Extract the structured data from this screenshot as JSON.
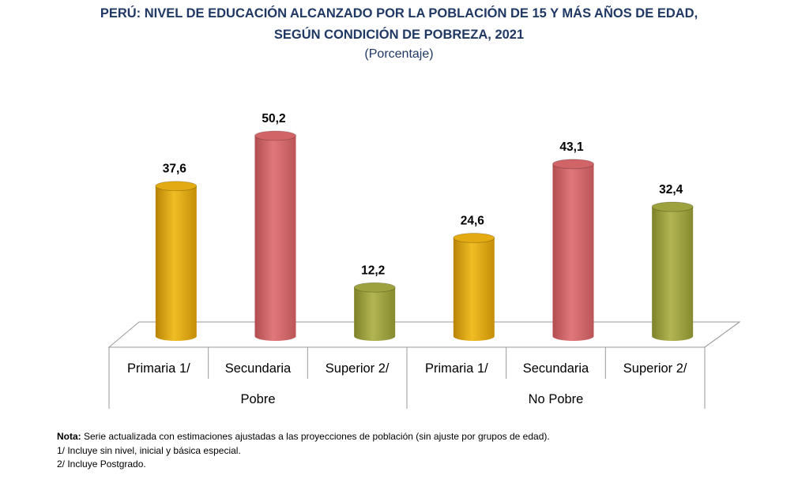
{
  "title_line1": "PERÚ: NIVEL DE EDUCACIÓN ALCANZADO POR LA POBLACIÓN DE 15 Y MÁS AÑOS DE EDAD,",
  "title_line2": "SEGÚN CONDICIÓN DE POBREZA, 2021",
  "subtitle": "(Porcentaje)",
  "chart_data": {
    "type": "bar",
    "groups": [
      "Pobre",
      "No Pobre"
    ],
    "categories": [
      "Primaria 1/",
      "Secundaria",
      "Superior 2/"
    ],
    "series": [
      {
        "group": "Pobre",
        "values": [
          37.6,
          50.2,
          12.2
        ],
        "labels": [
          "37,6",
          "50,2",
          "12,2"
        ]
      },
      {
        "group": "No Pobre",
        "values": [
          24.6,
          43.1,
          32.4
        ],
        "labels": [
          "24,6",
          "43,1",
          "32,4"
        ]
      }
    ],
    "ylim": [
      0,
      60
    ],
    "colors": [
      "#e3aa12",
      "#d06467",
      "#9ea23e"
    ]
  },
  "notes": {
    "nota_label": "Nota:",
    "nota_text": " Serie actualizada con estimaciones ajustadas a las proyecciones de población (sin ajuste por grupos de edad).",
    "note1": "1/ Incluye sin nivel, inicial y básica especial.",
    "note2": "2/ Incluye Postgrado."
  }
}
